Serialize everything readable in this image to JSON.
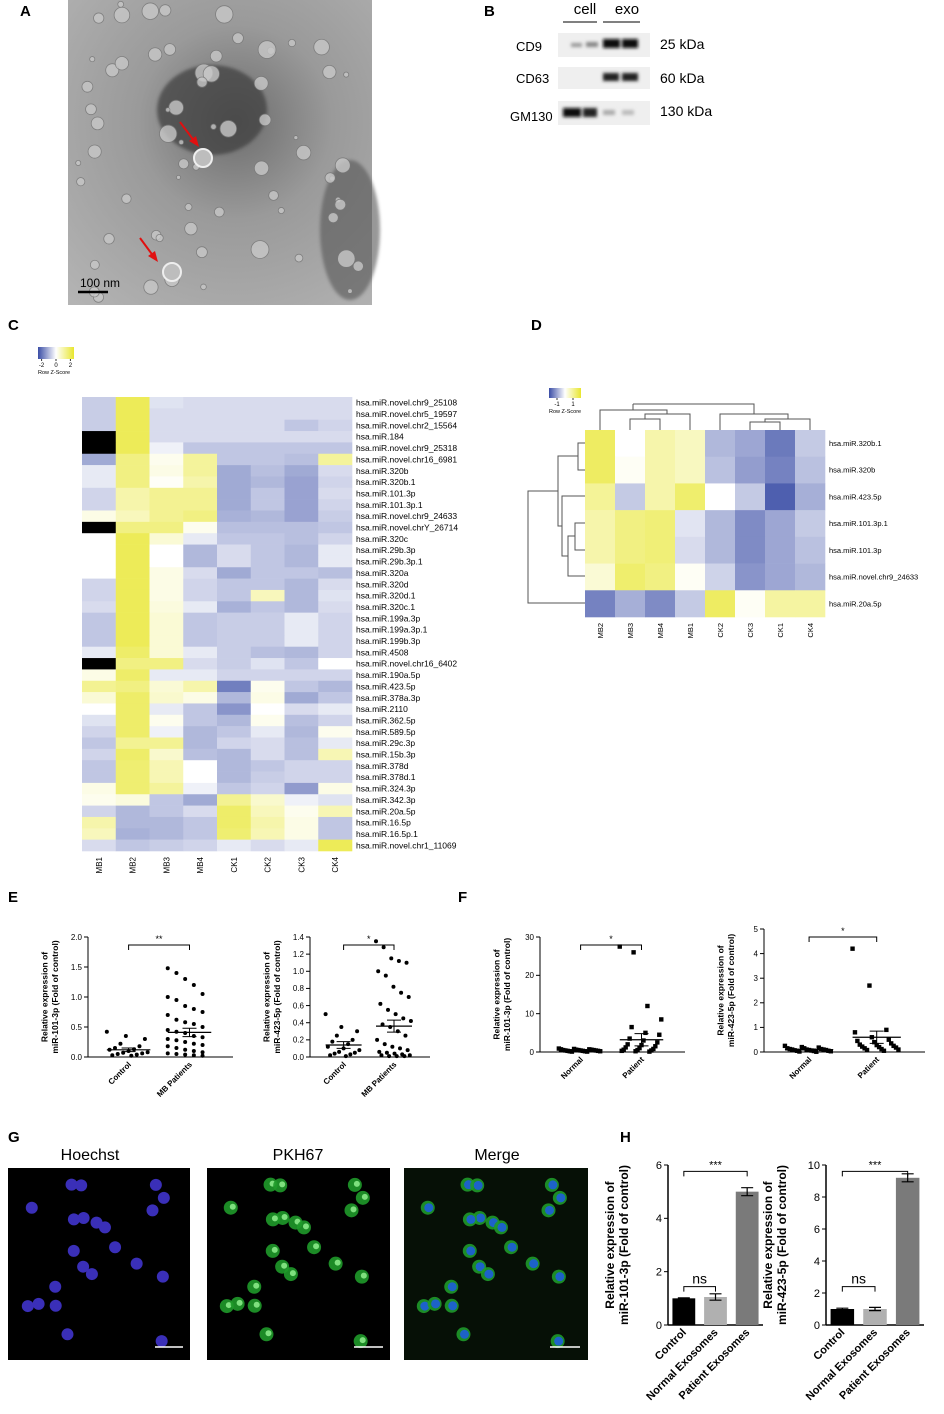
{
  "panel_labels": [
    "A",
    "B",
    "C",
    "D",
    "E",
    "F",
    "G",
    "H"
  ],
  "tem_image": {
    "scale_bar": "100 nm"
  },
  "western_blot": {
    "lanes": [
      "cell",
      "exo"
    ],
    "rows": [
      {
        "protein": "CD9",
        "size": "25 kDa"
      },
      {
        "protein": "CD63",
        "size": "60 kDa"
      },
      {
        "protein": "GM130",
        "size": "130 kDa"
      }
    ]
  },
  "fluorescence": {
    "channels": [
      "Hoechst",
      "PKH67",
      "Merge"
    ]
  },
  "chart_data": [
    {
      "type": "heatmap",
      "legend_title": "Row Z-Score",
      "zlim": [
        -2.5,
        2.5
      ],
      "zticks": [
        -2,
        0,
        2
      ],
      "low_color": "#3a4da6",
      "mid_color": "#ffffff",
      "high_color": "#e8e62e",
      "na_color": "#000000",
      "columns": [
        "MB1",
        "MB2",
        "MB3",
        "MB4",
        "CK1",
        "CK2",
        "CK3",
        "CK4"
      ],
      "rows": [
        "hsa.miR.novel.chr9_25108",
        "hsa.miR.novel.chr5_19597",
        "hsa.miR.novel.chr2_15564",
        "hsa.miR.184",
        "hsa.miR.novel.chr9_25318",
        "hsa.miR.novel.chr16_6981",
        "hsa.miR.320b",
        "hsa.miR.320b.1",
        "hsa.miR.101.3p",
        "hsa.miR.101.3p.1",
        "hsa.miR.novel.chr9_24633",
        "hsa.miR.novel.chrY_26714",
        "hsa.miR.320c",
        "hsa.miR.29b.3p",
        "hsa.miR.29b.3p.1",
        "hsa.miR.320a",
        "hsa.miR.320d",
        "hsa.miR.320d.1",
        "hsa.miR.320c.1",
        "hsa.miR.199a.3p",
        "hsa.miR.199a.3p.1",
        "hsa.miR.199b.3p",
        "hsa.miR.4508",
        "hsa.miR.novel.chr16_6402",
        "hsa.miR.190a.5p",
        "hsa.miR.423.5p",
        "hsa.miR.378a.3p",
        "hsa.miR.2110",
        "hsa.miR.362.5p",
        "hsa.miR.589.5p",
        "hsa.miR.29c.3p",
        "hsa.miR.15b.3p",
        "hsa.miR.378d",
        "hsa.miR.378d.1",
        "hsa.miR.324.3p",
        "hsa.miR.342.3p",
        "hsa.miR.20a.5p",
        "hsa.miR.16.5p",
        "hsa.miR.16.5p.1",
        "hsa.miR.novel.chr1_11069"
      ],
      "values": [
        [
          -0.7,
          2,
          -0.4,
          -0.5,
          -0.5,
          -0.5,
          -0.5,
          -0.5
        ],
        [
          -0.7,
          2,
          -0.5,
          -0.5,
          -0.5,
          -0.5,
          -0.5,
          -0.5
        ],
        [
          -0.7,
          2,
          -0.5,
          -0.5,
          -0.5,
          -0.5,
          -0.8,
          -0.6
        ],
        [
          null,
          2,
          -0.5,
          -0.5,
          -0.5,
          -0.5,
          -0.5,
          -0.5
        ],
        [
          null,
          2,
          -0.2,
          -0.8,
          -0.8,
          -0.8,
          -0.8,
          -0.8
        ],
        [
          -1.2,
          1.5,
          0.2,
          1.2,
          -0.8,
          -0.8,
          -0.9,
          1.2
        ],
        [
          -0.3,
          1.5,
          0.3,
          1.2,
          -1.2,
          -0.9,
          -1.2,
          -0.5
        ],
        [
          -0.3,
          1.5,
          0.1,
          1.0,
          -1.2,
          -1.0,
          -1.3,
          -0.6
        ],
        [
          -0.6,
          1.0,
          1.3,
          1.3,
          -1.2,
          -0.8,
          -1.3,
          -0.5
        ],
        [
          -0.6,
          1.0,
          1.3,
          1.3,
          -1.2,
          -0.8,
          -1.3,
          -0.6
        ],
        [
          0.3,
          0.8,
          1.3,
          1.5,
          -1.1,
          -1.0,
          -1.3,
          -0.7
        ],
        [
          null,
          1.5,
          1.5,
          0.2,
          -0.9,
          -0.9,
          -0.9,
          -0.8
        ],
        [
          0,
          2,
          0.5,
          -0.3,
          -0.8,
          -0.8,
          -0.9,
          -0.6
        ],
        [
          0,
          2,
          0,
          -1.0,
          -0.5,
          -0.8,
          -1.0,
          -0.3
        ],
        [
          0,
          2,
          0,
          -1.0,
          -0.5,
          -0.8,
          -1.0,
          -0.3
        ],
        [
          0,
          2,
          0.3,
          -0.5,
          -1.2,
          -0.8,
          -0.8,
          -0.9
        ],
        [
          -0.6,
          2,
          0.3,
          -0.6,
          -0.8,
          -0.8,
          -1.0,
          -0.5
        ],
        [
          -0.6,
          2,
          0.3,
          -0.6,
          -0.8,
          0.8,
          -1.0,
          -0.4
        ],
        [
          -0.5,
          2,
          0.4,
          -0.3,
          -1.1,
          -0.8,
          -1.0,
          -0.5
        ],
        [
          -0.8,
          2,
          0.5,
          -0.8,
          -0.7,
          -0.7,
          -0.3,
          -0.6
        ],
        [
          -0.8,
          2,
          0.5,
          -0.8,
          -0.7,
          -0.7,
          -0.3,
          -0.6
        ],
        [
          -0.8,
          2,
          0.5,
          -0.8,
          -0.7,
          -0.7,
          -0.3,
          -0.6
        ],
        [
          -0.3,
          1.8,
          0.5,
          -0.3,
          -0.7,
          -0.9,
          -1.0,
          -0.6
        ],
        [
          null,
          1.5,
          1.5,
          -0.5,
          -0.7,
          -0.4,
          -0.8,
          0
        ],
        [
          0.3,
          1.8,
          -0.3,
          -0.3,
          -0.6,
          -0.6,
          -0.6,
          -0.6
        ],
        [
          1.3,
          1.5,
          0.5,
          1.0,
          -1.8,
          0.2,
          -0.8,
          -1.0
        ],
        [
          0.5,
          1.8,
          0.6,
          0.3,
          -1.0,
          0.3,
          -1.2,
          -0.8
        ],
        [
          0,
          1.8,
          -0.3,
          -0.8,
          -1.5,
          0,
          -0.5,
          -0.3
        ],
        [
          -0.4,
          1.8,
          0.2,
          -0.8,
          -1.0,
          0.2,
          -0.9,
          -0.6
        ],
        [
          -0.6,
          1.8,
          -0.2,
          -1.0,
          -0.8,
          -0.3,
          -1.0,
          0.2
        ],
        [
          -0.8,
          1.3,
          1.3,
          -1.0,
          -0.6,
          -0.5,
          -0.9,
          -0.3
        ],
        [
          -0.6,
          1.8,
          0.6,
          -0.9,
          -1.0,
          -0.5,
          -0.9,
          0.9
        ],
        [
          -0.8,
          1.7,
          0.9,
          0,
          -1.0,
          -0.8,
          -0.6,
          -0.6
        ],
        [
          -0.8,
          1.7,
          0.9,
          0,
          -1.0,
          -0.7,
          -0.6,
          -0.6
        ],
        [
          0.3,
          1.7,
          1.2,
          -0.2,
          -0.8,
          -0.6,
          -1.4,
          0.3
        ],
        [
          0.2,
          0.4,
          -0.8,
          -1.2,
          1.3,
          0.6,
          -0.2,
          -0.4
        ],
        [
          -0.6,
          -1.0,
          -0.8,
          -0.5,
          1.8,
          0.8,
          0.2,
          0.9
        ],
        [
          1.0,
          -1.0,
          -1.0,
          -0.8,
          1.8,
          1.0,
          0.3,
          -0.8
        ],
        [
          0.8,
          -1.1,
          -1.0,
          -0.8,
          1.7,
          0.9,
          0.3,
          -0.8
        ],
        [
          -0.5,
          -0.8,
          -0.7,
          -0.6,
          -0.3,
          -0.5,
          -0.3,
          2
        ]
      ]
    },
    {
      "type": "heatmap",
      "legend_title": "Row Z-Score",
      "zlim": [
        -2,
        2
      ],
      "zticks": [
        -1,
        1
      ],
      "low_color": "#3a4da6",
      "mid_color": "#ffffff",
      "high_color": "#e8e62e",
      "na_color": "#000000",
      "columns": [
        "MB2",
        "MB3",
        "MB4",
        "MB1",
        "CK2",
        "CK3",
        "CK1",
        "CK4"
      ],
      "rows": [
        "hsa.miR.320b.1",
        "hsa.miR.320b",
        "hsa.miR.423.5p",
        "hsa.miR.101.3p.1",
        "hsa.miR.101.3p",
        "hsa.miR.novel.chr9_24633",
        "hsa.miR.20a.5p"
      ],
      "values": [
        [
          1.5,
          0,
          0.8,
          0.6,
          -0.8,
          -1.0,
          -1.5,
          -0.6
        ],
        [
          1.5,
          0.1,
          0.8,
          0.6,
          -0.7,
          -1.1,
          -1.4,
          -0.7
        ],
        [
          1.0,
          -0.6,
          0.8,
          1.4,
          0,
          -0.6,
          -1.8,
          -0.9
        ],
        [
          0.8,
          1.2,
          1.3,
          -0.3,
          -0.8,
          -1.3,
          -1.0,
          -0.6
        ],
        [
          0.8,
          1.2,
          1.3,
          -0.4,
          -0.8,
          -1.3,
          -1.0,
          -0.7
        ],
        [
          0.4,
          1.4,
          1.2,
          0.1,
          -0.5,
          -1.2,
          -1.0,
          -0.8
        ],
        [
          -1.4,
          -0.9,
          -1.3,
          -0.6,
          1.5,
          0.1,
          0.9,
          0.9
        ]
      ]
    },
    {
      "type": "dot",
      "marker": "circle",
      "color": "#000000",
      "significance": [
        "**"
      ],
      "ylabel": [
        "Relative expression of",
        "miR-101-3p (Fold of control)"
      ],
      "ylim": [
        0,
        2
      ],
      "yticks": [
        {
          "value": 0,
          "label": "0.0"
        },
        {
          "value": 0.5,
          "label": "0.5"
        },
        {
          "value": 1,
          "label": "1.0"
        },
        {
          "value": 1.5,
          "label": "1.5"
        },
        {
          "value": 2,
          "label": "2.0"
        }
      ],
      "categories": [
        "Control",
        "MB Patients"
      ],
      "groups": [
        {
          "values": [
            0.42,
            0.35,
            0.3,
            0.22,
            0.18,
            0.15,
            0.13,
            0.12,
            0.1,
            0.08,
            0.07,
            0.06,
            0.05,
            0.04,
            0.03,
            0.02
          ],
          "mean": 0.12,
          "sem": 0.03
        },
        {
          "values": [
            1.48,
            1.4,
            1.3,
            1.2,
            1.05,
            1.0,
            0.95,
            0.85,
            0.8,
            0.75,
            0.7,
            0.62,
            0.58,
            0.55,
            0.5,
            0.45,
            0.42,
            0.4,
            0.35,
            0.33,
            0.3,
            0.28,
            0.25,
            0.22,
            0.2,
            0.18,
            0.15,
            0.12,
            0.1,
            0.08,
            0.06,
            0.05,
            0.04,
            0.03,
            0.02
          ],
          "mean": 0.41,
          "sem": 0.07
        }
      ]
    },
    {
      "type": "dot",
      "marker": "circle",
      "color": "#000000",
      "significance": [
        "*"
      ],
      "ylabel": [
        "Relative expression of",
        "miR-423-5p (Fold of control)"
      ],
      "ylim": [
        0,
        1.4
      ],
      "yticks": [
        {
          "value": 0,
          "label": "0.0"
        },
        {
          "value": 0.2,
          "label": "0.2"
        },
        {
          "value": 0.4,
          "label": "0.4"
        },
        {
          "value": 0.6,
          "label": "0.6"
        },
        {
          "value": 0.8,
          "label": "0.8"
        },
        {
          "value": 1,
          "label": "1.0"
        },
        {
          "value": 1.2,
          "label": "1.2"
        },
        {
          "value": 1.4,
          "label": "1.4"
        }
      ],
      "categories": [
        "Control",
        "MB Patients"
      ],
      "groups": [
        {
          "values": [
            0.5,
            0.35,
            0.3,
            0.25,
            0.2,
            0.18,
            0.15,
            0.12,
            0.1,
            0.08,
            0.06,
            0.05,
            0.04,
            0.03,
            0.02,
            0.01
          ],
          "mean": 0.14,
          "sem": 0.04
        },
        {
          "values": [
            1.35,
            1.28,
            1.15,
            1.12,
            1.1,
            1.0,
            0.95,
            0.82,
            0.75,
            0.7,
            0.62,
            0.55,
            0.5,
            0.45,
            0.42,
            0.38,
            0.35,
            0.3,
            0.25,
            0.2,
            0.15,
            0.12,
            0.1,
            0.08,
            0.06,
            0.05,
            0.04,
            0.03,
            0.02,
            0.02,
            0.01,
            0.01,
            0.01
          ],
          "mean": 0.36,
          "sem": 0.07
        }
      ]
    },
    {
      "type": "dot",
      "marker": "square",
      "color": "#000000",
      "significance": [
        "*"
      ],
      "ylabel": [
        "Relative expression of",
        "miR-101-3p (Fold of control)"
      ],
      "ylim": [
        0,
        30
      ],
      "yticks": [
        0,
        10,
        20,
        30
      ],
      "categories": [
        "Normal",
        "Patient"
      ],
      "groups": [
        {
          "values": [
            0.9,
            0.8,
            0.7,
            0.7,
            0.6,
            0.6,
            0.5,
            0.5,
            0.5,
            0.4,
            0.4,
            0.4,
            0.3,
            0.3,
            0.3,
            0.2,
            0.2,
            0.2,
            0.1,
            0.1
          ],
          "mean": 0.43,
          "sem": 0.06
        },
        {
          "values": [
            27.5,
            26,
            12,
            8.5,
            6.5,
            5,
            4.5,
            3.5,
            3,
            2.5,
            2,
            1.8,
            1.5,
            1.2,
            1,
            0.8,
            0.6,
            0.5,
            0.4,
            0.3,
            0.2,
            0.1
          ],
          "mean": 3.2,
          "sem": 1.6
        }
      ]
    },
    {
      "type": "dot",
      "marker": "square",
      "color": "#000000",
      "significance": [
        "*"
      ],
      "ylabel": [
        "Relative expression of",
        "miR-423-5p (Fold of control)"
      ],
      "ylim": [
        0,
        5
      ],
      "yticks": [
        0,
        1,
        2,
        3,
        4,
        5
      ],
      "categories": [
        "Normal",
        "Patient"
      ],
      "groups": [
        {
          "values": [
            0.25,
            0.2,
            0.18,
            0.15,
            0.15,
            0.12,
            0.12,
            0.1,
            0.1,
            0.1,
            0.08,
            0.08,
            0.07,
            0.06,
            0.05,
            0.05,
            0.04,
            0.03,
            0.02,
            0.01
          ],
          "mean": 0.1,
          "sem": 0.02
        },
        {
          "values": [
            4.2,
            2.7,
            0.9,
            0.8,
            0.6,
            0.5,
            0.45,
            0.4,
            0.35,
            0.3,
            0.28,
            0.25,
            0.22,
            0.2,
            0.18,
            0.15,
            0.12,
            0.1,
            0.08,
            0.05
          ],
          "mean": 0.6,
          "sem": 0.25
        }
      ]
    },
    {
      "type": "bar",
      "significance": [
        "ns",
        "***"
      ],
      "ylabel": [
        "Relative expression of",
        "miR-101-3p (Fold of control)"
      ],
      "ylim": [
        0,
        6
      ],
      "yticks": [
        0,
        2,
        4,
        6
      ],
      "categories": [
        "Control",
        "Normal Exosomes",
        "Patient Exosomes"
      ],
      "colors": [
        "#000000",
        "#b0b0b0",
        "#7a7a7a"
      ],
      "values": [
        1.0,
        1.05,
        5.0
      ],
      "errors": [
        0.02,
        0.12,
        0.15
      ]
    },
    {
      "type": "bar",
      "significance": [
        "ns",
        "***"
      ],
      "ylabel": [
        "Relative expression of",
        "miR-423-5p (Fold of control)"
      ],
      "ylim": [
        0,
        10
      ],
      "yticks": [
        0,
        2,
        4,
        6,
        8,
        10
      ],
      "categories": [
        "Control",
        "Normal Exosomes",
        "Patient Exosomes"
      ],
      "colors": [
        "#000000",
        "#b0b0b0",
        "#7a7a7a"
      ],
      "values": [
        1.0,
        1.0,
        9.2
      ],
      "errors": [
        0.05,
        0.1,
        0.25
      ]
    }
  ]
}
